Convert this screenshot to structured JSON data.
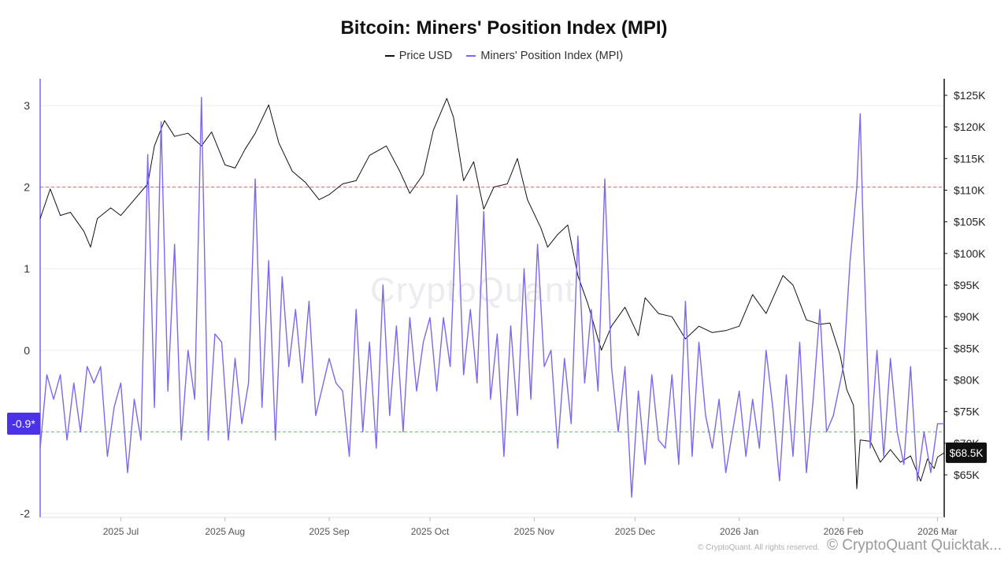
{
  "chart_data": {
    "type": "line",
    "title": "Bitcoin: Miners' Position Index (MPI)",
    "legend": [
      "Price USD",
      "Miners' Position Index (MPI)"
    ],
    "legend_placement": "top-center",
    "x_start": "2025-06-07",
    "x_end": "2026-03-03",
    "x_ticks": [
      {
        "date": "2025-07-01",
        "label": "2025 Jul"
      },
      {
        "date": "2025-08-01",
        "label": "2025 Aug"
      },
      {
        "date": "2025-09-01",
        "label": "2025 Sep"
      },
      {
        "date": "2025-10-01",
        "label": "2025 Oct"
      },
      {
        "date": "2025-11-01",
        "label": "2025 Nov"
      },
      {
        "date": "2025-12-01",
        "label": "2025 Dec"
      },
      {
        "date": "2026-01-01",
        "label": "2026 Jan"
      },
      {
        "date": "2026-02-01",
        "label": "2026 Feb"
      },
      {
        "date": "2026-03-01",
        "label": "2026 Mar"
      }
    ],
    "left_axis": {
      "name": "MPI",
      "ylim": [
        -2,
        3.3
      ],
      "ticks": [
        3,
        2,
        1,
        0,
        -2
      ],
      "tick_labels": [
        "3",
        "2",
        "1",
        "0",
        "-2"
      ]
    },
    "right_axis": {
      "name": "Price USD",
      "ylim": [
        61000,
        128000
      ],
      "scale": "linear",
      "ticks": [
        125000,
        120000,
        115000,
        110000,
        105000,
        100000,
        95000,
        90000,
        85000,
        80000,
        75000,
        70000,
        65000
      ],
      "tick_labels": [
        "$125K",
        "$120K",
        "$115K",
        "$110K",
        "$105K",
        "$100K",
        "$95K",
        "$90K",
        "$85K",
        "$80K",
        "$75K",
        "$70K",
        "$65K"
      ]
    },
    "reference_lines": [
      {
        "axis": "left",
        "value": 2,
        "color": "#d9534f",
        "style": "dashed"
      },
      {
        "axis": "left",
        "value": -1,
        "color": "#4caf50",
        "style": "dashed"
      }
    ],
    "current_value_badges": {
      "mpi": "-0.9*",
      "price": "$68.5K"
    },
    "series": [
      {
        "name": "Price USD",
        "color": "#111111",
        "axis": "right",
        "points": [
          [
            "2025-06-07",
            105500
          ],
          [
            "2025-06-10",
            110200
          ],
          [
            "2025-06-13",
            106000
          ],
          [
            "2025-06-16",
            106500
          ],
          [
            "2025-06-20",
            103500
          ],
          [
            "2025-06-22",
            101000
          ],
          [
            "2025-06-24",
            105500
          ],
          [
            "2025-06-28",
            107200
          ],
          [
            "2025-07-01",
            106000
          ],
          [
            "2025-07-05",
            108500
          ],
          [
            "2025-07-09",
            111000
          ],
          [
            "2025-07-11",
            117000
          ],
          [
            "2025-07-14",
            121000
          ],
          [
            "2025-07-17",
            118500
          ],
          [
            "2025-07-21",
            119000
          ],
          [
            "2025-07-25",
            117000
          ],
          [
            "2025-07-28",
            119200
          ],
          [
            "2025-08-01",
            114000
          ],
          [
            "2025-08-04",
            113500
          ],
          [
            "2025-08-07",
            116500
          ],
          [
            "2025-08-10",
            119000
          ],
          [
            "2025-08-14",
            123500
          ],
          [
            "2025-08-17",
            117500
          ],
          [
            "2025-08-21",
            113000
          ],
          [
            "2025-08-25",
            111200
          ],
          [
            "2025-08-29",
            108500
          ],
          [
            "2025-09-01",
            109300
          ],
          [
            "2025-09-05",
            111000
          ],
          [
            "2025-09-09",
            111500
          ],
          [
            "2025-09-13",
            115500
          ],
          [
            "2025-09-18",
            117000
          ],
          [
            "2025-09-22",
            113000
          ],
          [
            "2025-09-25",
            109500
          ],
          [
            "2025-09-29",
            112500
          ],
          [
            "2025-10-02",
            119500
          ],
          [
            "2025-10-06",
            124500
          ],
          [
            "2025-10-08",
            121500
          ],
          [
            "2025-10-11",
            111500
          ],
          [
            "2025-10-14",
            114500
          ],
          [
            "2025-10-17",
            107000
          ],
          [
            "2025-10-20",
            110500
          ],
          [
            "2025-10-24",
            111000
          ],
          [
            "2025-10-27",
            115000
          ],
          [
            "2025-10-30",
            108500
          ],
          [
            "2025-11-03",
            104000
          ],
          [
            "2025-11-05",
            101000
          ],
          [
            "2025-11-08",
            103000
          ],
          [
            "2025-11-11",
            104500
          ],
          [
            "2025-11-14",
            96500
          ],
          [
            "2025-11-17",
            92000
          ],
          [
            "2025-11-20",
            86500
          ],
          [
            "2025-11-21",
            84700
          ],
          [
            "2025-11-24",
            88500
          ],
          [
            "2025-11-28",
            91500
          ],
          [
            "2025-12-02",
            87000
          ],
          [
            "2025-12-04",
            93000
          ],
          [
            "2025-12-08",
            90500
          ],
          [
            "2025-12-12",
            90000
          ],
          [
            "2025-12-16",
            86500
          ],
          [
            "2025-12-20",
            88500
          ],
          [
            "2025-12-24",
            87500
          ],
          [
            "2025-12-28",
            87800
          ],
          [
            "2026-01-01",
            88500
          ],
          [
            "2026-01-05",
            93500
          ],
          [
            "2026-01-09",
            90500
          ],
          [
            "2026-01-14",
            96500
          ],
          [
            "2026-01-17",
            95000
          ],
          [
            "2026-01-21",
            89500
          ],
          [
            "2026-01-25",
            88800
          ],
          [
            "2026-01-28",
            89000
          ],
          [
            "2026-01-31",
            84000
          ],
          [
            "2026-02-02",
            78500
          ],
          [
            "2026-02-04",
            76000
          ],
          [
            "2026-02-05",
            62800
          ],
          [
            "2026-02-06",
            70500
          ],
          [
            "2026-02-09",
            70300
          ],
          [
            "2026-02-12",
            67000
          ],
          [
            "2026-02-15",
            69000
          ],
          [
            "2026-02-18",
            67000
          ],
          [
            "2026-02-21",
            68000
          ],
          [
            "2026-02-24",
            64000
          ],
          [
            "2026-02-26",
            67500
          ],
          [
            "2026-02-28",
            66000
          ],
          [
            "2026-03-01",
            67800
          ],
          [
            "2026-03-03",
            68500
          ]
        ]
      },
      {
        "name": "Miners' Position Index (MPI)",
        "color": "#7b68ee",
        "axis": "left",
        "points": [
          [
            "2025-06-07",
            -1.2
          ],
          [
            "2025-06-09",
            -0.3
          ],
          [
            "2025-06-11",
            -0.6
          ],
          [
            "2025-06-13",
            -0.3
          ],
          [
            "2025-06-15",
            -1.1
          ],
          [
            "2025-06-17",
            -0.4
          ],
          [
            "2025-06-19",
            -1.0
          ],
          [
            "2025-06-21",
            -0.2
          ],
          [
            "2025-06-23",
            -0.4
          ],
          [
            "2025-06-25",
            -0.2
          ],
          [
            "2025-06-27",
            -1.3
          ],
          [
            "2025-06-29",
            -0.7
          ],
          [
            "2025-07-01",
            -0.4
          ],
          [
            "2025-07-03",
            -1.5
          ],
          [
            "2025-07-05",
            -0.6
          ],
          [
            "2025-07-07",
            -1.1
          ],
          [
            "2025-07-09",
            2.4
          ],
          [
            "2025-07-11",
            -0.7
          ],
          [
            "2025-07-13",
            2.8
          ],
          [
            "2025-07-15",
            -0.5
          ],
          [
            "2025-07-17",
            1.3
          ],
          [
            "2025-07-19",
            -1.1
          ],
          [
            "2025-07-21",
            0.0
          ],
          [
            "2025-07-23",
            -0.6
          ],
          [
            "2025-07-25",
            3.1
          ],
          [
            "2025-07-27",
            -1.1
          ],
          [
            "2025-07-29",
            0.2
          ],
          [
            "2025-07-31",
            0.1
          ],
          [
            "2025-08-02",
            -1.1
          ],
          [
            "2025-08-04",
            -0.1
          ],
          [
            "2025-08-06",
            -0.9
          ],
          [
            "2025-08-08",
            -0.4
          ],
          [
            "2025-08-10",
            2.1
          ],
          [
            "2025-08-12",
            -0.7
          ],
          [
            "2025-08-14",
            1.1
          ],
          [
            "2025-08-16",
            -1.1
          ],
          [
            "2025-08-18",
            0.9
          ],
          [
            "2025-08-20",
            -0.2
          ],
          [
            "2025-08-22",
            0.5
          ],
          [
            "2025-08-24",
            -0.4
          ],
          [
            "2025-08-26",
            0.6
          ],
          [
            "2025-08-28",
            -0.8
          ],
          [
            "2025-09-01",
            -0.1
          ],
          [
            "2025-09-03",
            -0.4
          ],
          [
            "2025-09-05",
            -0.5
          ],
          [
            "2025-09-07",
            -1.3
          ],
          [
            "2025-09-09",
            0.5
          ],
          [
            "2025-09-11",
            -1.0
          ],
          [
            "2025-09-13",
            0.1
          ],
          [
            "2025-09-15",
            -1.2
          ],
          [
            "2025-09-17",
            0.8
          ],
          [
            "2025-09-19",
            -0.8
          ],
          [
            "2025-09-21",
            0.3
          ],
          [
            "2025-09-23",
            -1.0
          ],
          [
            "2025-09-25",
            0.4
          ],
          [
            "2025-09-27",
            -0.5
          ],
          [
            "2025-09-29",
            0.1
          ],
          [
            "2025-10-01",
            0.4
          ],
          [
            "2025-10-03",
            -0.5
          ],
          [
            "2025-10-05",
            0.4
          ],
          [
            "2025-10-07",
            -0.2
          ],
          [
            "2025-10-09",
            1.9
          ],
          [
            "2025-10-11",
            -0.3
          ],
          [
            "2025-10-13",
            0.5
          ],
          [
            "2025-10-15",
            -0.4
          ],
          [
            "2025-10-17",
            1.7
          ],
          [
            "2025-10-19",
            -0.6
          ],
          [
            "2025-10-21",
            0.2
          ],
          [
            "2025-10-23",
            -1.3
          ],
          [
            "2025-10-25",
            0.3
          ],
          [
            "2025-10-27",
            -0.8
          ],
          [
            "2025-10-29",
            1.0
          ],
          [
            "2025-10-31",
            -0.6
          ],
          [
            "2025-11-02",
            1.3
          ],
          [
            "2025-11-04",
            -0.2
          ],
          [
            "2025-11-06",
            0.0
          ],
          [
            "2025-11-08",
            -1.2
          ],
          [
            "2025-11-10",
            -0.1
          ],
          [
            "2025-11-12",
            -0.9
          ],
          [
            "2025-11-14",
            1.4
          ],
          [
            "2025-11-16",
            -0.4
          ],
          [
            "2025-11-18",
            0.5
          ],
          [
            "2025-11-20",
            -0.5
          ],
          [
            "2025-11-22",
            2.1
          ],
          [
            "2025-11-24",
            -0.2
          ],
          [
            "2025-11-26",
            -1.0
          ],
          [
            "2025-11-28",
            -0.2
          ],
          [
            "2025-11-30",
            -1.8
          ],
          [
            "2025-12-02",
            -0.5
          ],
          [
            "2025-12-04",
            -1.4
          ],
          [
            "2025-12-06",
            -0.3
          ],
          [
            "2025-12-08",
            -1.1
          ],
          [
            "2025-12-10",
            -1.2
          ],
          [
            "2025-12-12",
            -0.3
          ],
          [
            "2025-12-14",
            -1.4
          ],
          [
            "2025-12-16",
            0.6
          ],
          [
            "2025-12-18",
            -1.3
          ],
          [
            "2025-12-20",
            0.1
          ],
          [
            "2025-12-22",
            -0.8
          ],
          [
            "2025-12-24",
            -1.2
          ],
          [
            "2025-12-26",
            -0.6
          ],
          [
            "2025-12-28",
            -1.5
          ],
          [
            "2026-01-01",
            -0.5
          ],
          [
            "2026-01-03",
            -1.3
          ],
          [
            "2026-01-05",
            -0.6
          ],
          [
            "2026-01-07",
            -1.2
          ],
          [
            "2026-01-09",
            0.0
          ],
          [
            "2026-01-11",
            -0.7
          ],
          [
            "2026-01-13",
            -1.6
          ],
          [
            "2026-01-15",
            -0.3
          ],
          [
            "2026-01-17",
            -1.3
          ],
          [
            "2026-01-19",
            0.1
          ],
          [
            "2026-01-21",
            -1.5
          ],
          [
            "2026-01-23",
            -0.6
          ],
          [
            "2026-01-25",
            0.5
          ],
          [
            "2026-01-27",
            -1.0
          ],
          [
            "2026-01-29",
            -0.8
          ],
          [
            "2026-02-01",
            -0.2
          ],
          [
            "2026-02-03",
            1.1
          ],
          [
            "2026-02-05",
            2.0
          ],
          [
            "2026-02-06",
            2.9
          ],
          [
            "2026-02-07",
            1.3
          ],
          [
            "2026-02-09",
            -1.2
          ],
          [
            "2026-02-11",
            0.0
          ],
          [
            "2026-02-13",
            -1.3
          ],
          [
            "2026-02-15",
            -0.1
          ],
          [
            "2026-02-17",
            -1.0
          ],
          [
            "2026-02-19",
            -1.4
          ],
          [
            "2026-02-21",
            -0.2
          ],
          [
            "2026-02-23",
            -1.6
          ],
          [
            "2026-02-25",
            -1.0
          ],
          [
            "2026-02-27",
            -1.5
          ],
          [
            "2026-03-01",
            -0.9
          ],
          [
            "2026-03-03",
            -0.9
          ]
        ]
      }
    ]
  },
  "watermark": "CryptoQuant",
  "credit": {
    "main": "© CryptoQuant Quicktak...",
    "small": "© CryptoQuant. All rights reserved."
  }
}
